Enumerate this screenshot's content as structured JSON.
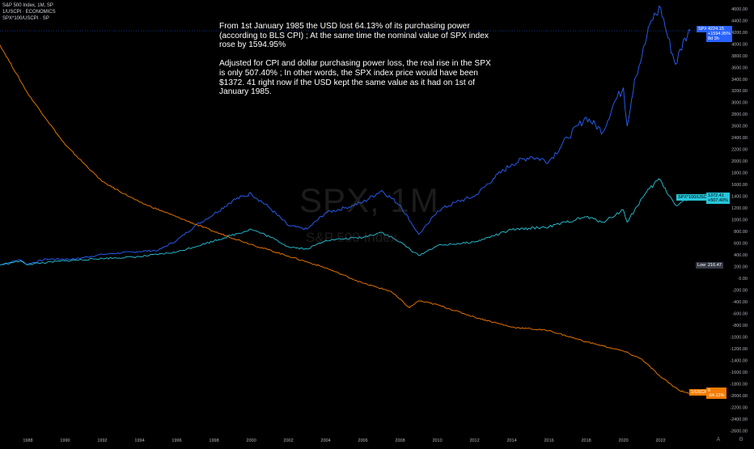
{
  "legend": {
    "line1": "S&P 500 Index, 1M, SP",
    "line2": "1/USCPI · ECONOMICS",
    "line3": "SPX*100/USCPI · SP"
  },
  "annotation": {
    "para1": "From 1st January 1985 the USD lost 64.13% of its purchasing power (according to BLS CPI) ; At the same time the nominal value of SPX index rose by 1594.95%",
    "para2": "Adjusted for CPI and dollar purchasing power loss, the real rise in the SPX is only 507.40% ; In other words, the SPX index price would have been $1372. 41 right now if the USD kept the same value as it had on 1st of January 1985."
  },
  "watermark": {
    "symbol": "SPX, 1M",
    "name": "S&P 500 Index"
  },
  "tags": {
    "spx_name": "SPX",
    "spx_value": "4224.15",
    "spx_change": "+1594.95%",
    "spx_extra": "8d 3h",
    "real_name": "SPX*100/USCPI",
    "real_value": "1372.41",
    "real_change": "+507.40%",
    "cpi_name": "1/USCPI",
    "cpi_value": "0",
    "cpi_change": "-64.13%",
    "low_label": "Low",
    "low_value": "216.47"
  },
  "colors": {
    "background": "#000000",
    "spx": "#2962ff",
    "real": "#26c6da",
    "cpi": "#f57c00",
    "axis_text": "#b2b5be"
  },
  "chart_data": {
    "type": "line",
    "x_unit": "year",
    "xlim": [
      1986.5,
      2023.8
    ],
    "ylim": [
      -2620,
      4680
    ],
    "x_ticks": [
      "1988",
      "1990",
      "1992",
      "1994",
      "1996",
      "1998",
      "2000",
      "2002",
      "2004",
      "2006",
      "2008",
      "2010",
      "2012",
      "2014",
      "2016",
      "2018",
      "2020",
      "2022"
    ],
    "y_ticks": [
      "4600.00",
      "4400.00",
      "4200.00",
      "4000.00",
      "3800.00",
      "3600.00",
      "3400.00",
      "3200.00",
      "3000.00",
      "2800.00",
      "2600.00",
      "2400.00",
      "2200.00",
      "2000.00",
      "1800.00",
      "1600.00",
      "1400.00",
      "1200.00",
      "1000.00",
      "800.00",
      "600.00",
      "400.00",
      "200.00",
      "0.00",
      "-200.00",
      "-400.00",
      "-600.00",
      "-800.00",
      "-1000.00",
      "-1200.00",
      "-1400.00",
      "-1600.00",
      "-1800.00",
      "-2000.00",
      "-2200.00",
      "-2400.00",
      "-2600.00"
    ],
    "series": [
      {
        "name": "S&P 500 Index, 1M, SP",
        "points": [
          [
            1986.5,
            230
          ],
          [
            1987.6,
            320
          ],
          [
            1987.9,
            240
          ],
          [
            1989,
            330
          ],
          [
            1990.5,
            330
          ],
          [
            1992,
            410
          ],
          [
            1994,
            460
          ],
          [
            1995,
            480
          ],
          [
            1996,
            650
          ],
          [
            1997,
            900
          ],
          [
            1998,
            1100
          ],
          [
            1999,
            1330
          ],
          [
            2000,
            1450
          ],
          [
            2001,
            1200
          ],
          [
            2002,
            900
          ],
          [
            2003,
            840
          ],
          [
            2004,
            1120
          ],
          [
            2005,
            1200
          ],
          [
            2006,
            1300
          ],
          [
            2007,
            1500
          ],
          [
            2008,
            1250
          ],
          [
            2009,
            750
          ],
          [
            2009.5,
            930
          ],
          [
            2010,
            1150
          ],
          [
            2011,
            1300
          ],
          [
            2012,
            1400
          ],
          [
            2013,
            1700
          ],
          [
            2014,
            1950
          ],
          [
            2015,
            2080
          ],
          [
            2016,
            2000
          ],
          [
            2017,
            2400
          ],
          [
            2018,
            2750
          ],
          [
            2018.9,
            2500
          ],
          [
            2019.5,
            3000
          ],
          [
            2020,
            3250
          ],
          [
            2020.2,
            2600
          ],
          [
            2020.6,
            3400
          ],
          [
            2021,
            3800
          ],
          [
            2021.5,
            4400
          ],
          [
            2022,
            4620
          ],
          [
            2022.4,
            4100
          ],
          [
            2022.8,
            3650
          ],
          [
            2023.3,
            4100
          ],
          [
            2023.6,
            4224
          ]
        ]
      },
      {
        "name": "1/USCPI · ECONOMICS",
        "points": [
          [
            1986.5,
            3980
          ],
          [
            1988,
            3150
          ],
          [
            1990,
            2280
          ],
          [
            1992,
            1650
          ],
          [
            1994,
            1300
          ],
          [
            1996,
            1050
          ],
          [
            1998,
            800
          ],
          [
            2000,
            580
          ],
          [
            2002,
            380
          ],
          [
            2004,
            180
          ],
          [
            2006,
            -80
          ],
          [
            2007.5,
            -220
          ],
          [
            2008.5,
            -500
          ],
          [
            2009,
            -380
          ],
          [
            2010,
            -450
          ],
          [
            2012,
            -660
          ],
          [
            2014,
            -830
          ],
          [
            2016,
            -890
          ],
          [
            2018,
            -1080
          ],
          [
            2020,
            -1240
          ],
          [
            2021,
            -1380
          ],
          [
            2022,
            -1680
          ],
          [
            2023,
            -1910
          ],
          [
            2023.6,
            -1960
          ]
        ]
      },
      {
        "name": "SPX*100/USCPI · SP",
        "points": [
          [
            1986.5,
            230
          ],
          [
            1987.6,
            300
          ],
          [
            1987.9,
            240
          ],
          [
            1990,
            300
          ],
          [
            1992,
            340
          ],
          [
            1994,
            370
          ],
          [
            1996,
            450
          ],
          [
            1998,
            640
          ],
          [
            2000,
            840
          ],
          [
            2001,
            710
          ],
          [
            2002,
            540
          ],
          [
            2003,
            500
          ],
          [
            2004,
            650
          ],
          [
            2006,
            700
          ],
          [
            2007,
            790
          ],
          [
            2008,
            620
          ],
          [
            2009,
            390
          ],
          [
            2010,
            560
          ],
          [
            2012,
            620
          ],
          [
            2014,
            830
          ],
          [
            2016,
            880
          ],
          [
            2018,
            1050
          ],
          [
            2018.9,
            960
          ],
          [
            2020,
            1170
          ],
          [
            2020.2,
            960
          ],
          [
            2021,
            1370
          ],
          [
            2021.9,
            1700
          ],
          [
            2022.5,
            1400
          ],
          [
            2022.8,
            1250
          ],
          [
            2023.6,
            1372
          ]
        ]
      }
    ]
  }
}
